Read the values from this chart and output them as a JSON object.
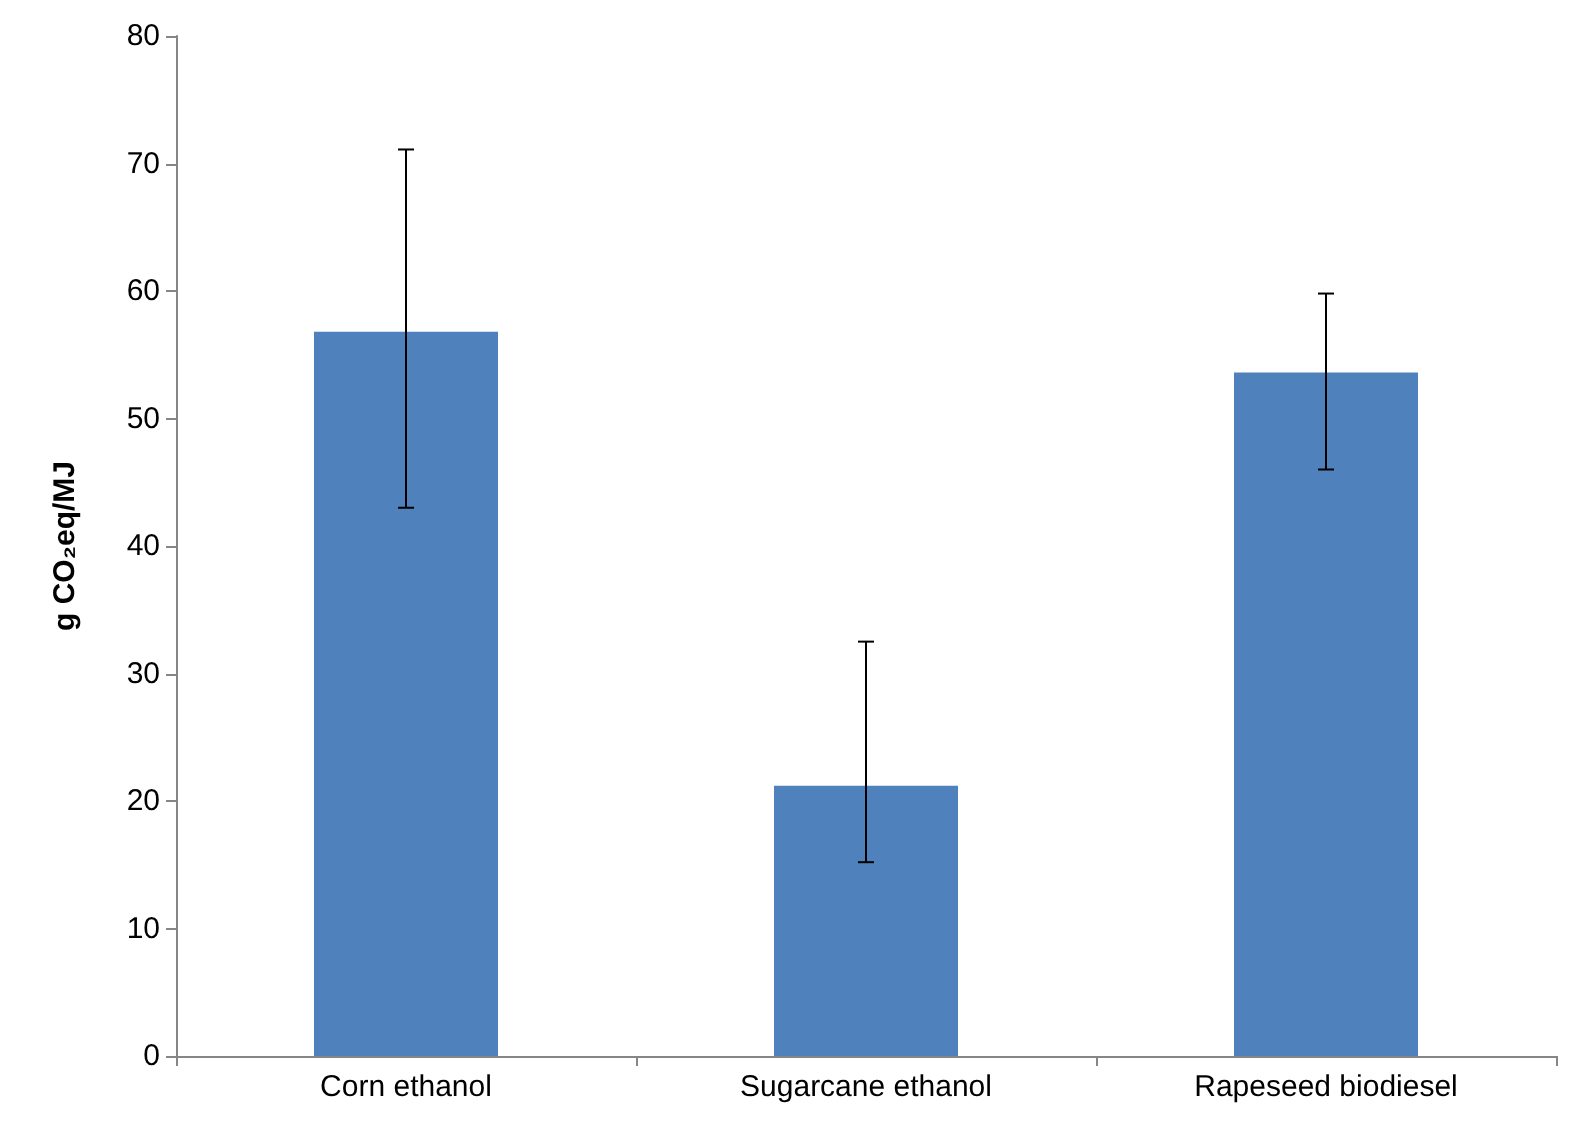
{
  "chart_data": {
    "type": "bar",
    "ylabel": "g CO₂eq/MJ",
    "categories": [
      "Corn ethanol",
      "Sugarcane ethanol",
      "Rapeseed biodiesel"
    ],
    "values": [
      56.8,
      21.2,
      53.6
    ],
    "color": "#4f81bd",
    "errors": [
      [
        43.0,
        71.1
      ],
      [
        15.2,
        32.5
      ],
      [
        46.0,
        59.8
      ]
    ],
    "ylim": [
      0,
      80
    ],
    "yticks": [
      0,
      10,
      20,
      30,
      40,
      50,
      60,
      70,
      80
    ],
    "grid": false
  }
}
